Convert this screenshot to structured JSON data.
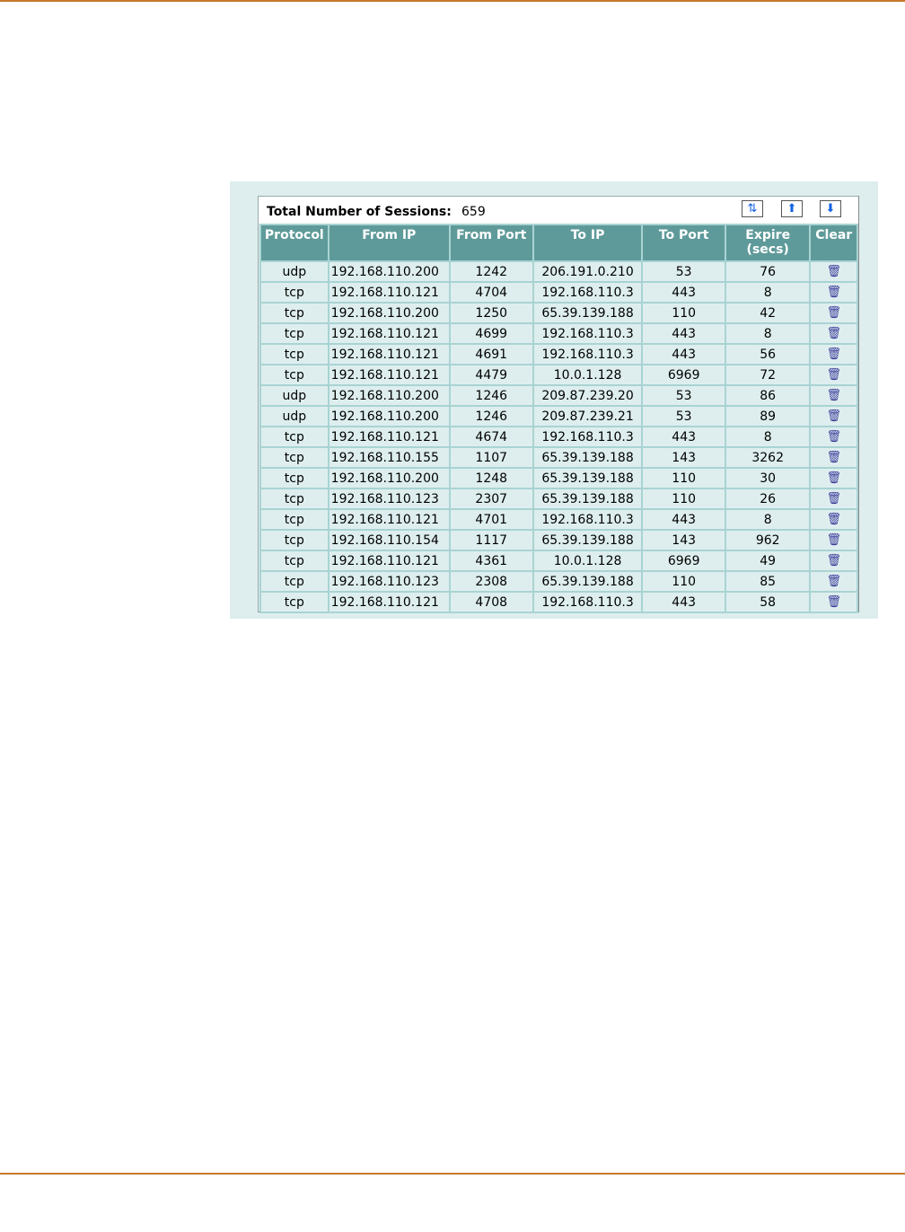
{
  "header": {
    "total_label": "Total Number of Sessions:",
    "total_value": "659"
  },
  "toolbar": [
    {
      "icon": "refresh-icon",
      "glyph": "⇅"
    },
    {
      "icon": "page-up-icon",
      "glyph": "⬆"
    },
    {
      "icon": "page-down-icon",
      "glyph": "⬇"
    }
  ],
  "columns": [
    "Protocol",
    "From IP",
    "From Port",
    "To IP",
    "To Port",
    "Expire (secs)",
    "Clear"
  ],
  "rows": [
    [
      "udp",
      "192.168.110.200",
      "1242",
      "206.191.0.210",
      "53",
      "76"
    ],
    [
      "tcp",
      "192.168.110.121",
      "4704",
      "192.168.110.3",
      "443",
      "8"
    ],
    [
      "tcp",
      "192.168.110.200",
      "1250",
      "65.39.139.188",
      "110",
      "42"
    ],
    [
      "tcp",
      "192.168.110.121",
      "4699",
      "192.168.110.3",
      "443",
      "8"
    ],
    [
      "tcp",
      "192.168.110.121",
      "4691",
      "192.168.110.3",
      "443",
      "56"
    ],
    [
      "tcp",
      "192.168.110.121",
      "4479",
      "10.0.1.128",
      "6969",
      "72"
    ],
    [
      "udp",
      "192.168.110.200",
      "1246",
      "209.87.239.20",
      "53",
      "86"
    ],
    [
      "udp",
      "192.168.110.200",
      "1246",
      "209.87.239.21",
      "53",
      "89"
    ],
    [
      "tcp",
      "192.168.110.121",
      "4674",
      "192.168.110.3",
      "443",
      "8"
    ],
    [
      "tcp",
      "192.168.110.155",
      "1107",
      "65.39.139.188",
      "143",
      "3262"
    ],
    [
      "tcp",
      "192.168.110.200",
      "1248",
      "65.39.139.188",
      "110",
      "30"
    ],
    [
      "tcp",
      "192.168.110.123",
      "2307",
      "65.39.139.188",
      "110",
      "26"
    ],
    [
      "tcp",
      "192.168.110.121",
      "4701",
      "192.168.110.3",
      "443",
      "8"
    ],
    [
      "tcp",
      "192.168.110.154",
      "1117",
      "65.39.139.188",
      "143",
      "962"
    ],
    [
      "tcp",
      "192.168.110.121",
      "4361",
      "10.0.1.128",
      "6969",
      "49"
    ],
    [
      "tcp",
      "192.168.110.123",
      "2308",
      "65.39.139.188",
      "110",
      "85"
    ],
    [
      "tcp",
      "192.168.110.121",
      "4708",
      "192.168.110.3",
      "443",
      "58"
    ]
  ],
  "clear_icon": "trash-icon",
  "colors": {
    "header_bg": "#5f9a9a",
    "panel_bg": "#deeeee",
    "rule": "#c8782a"
  }
}
